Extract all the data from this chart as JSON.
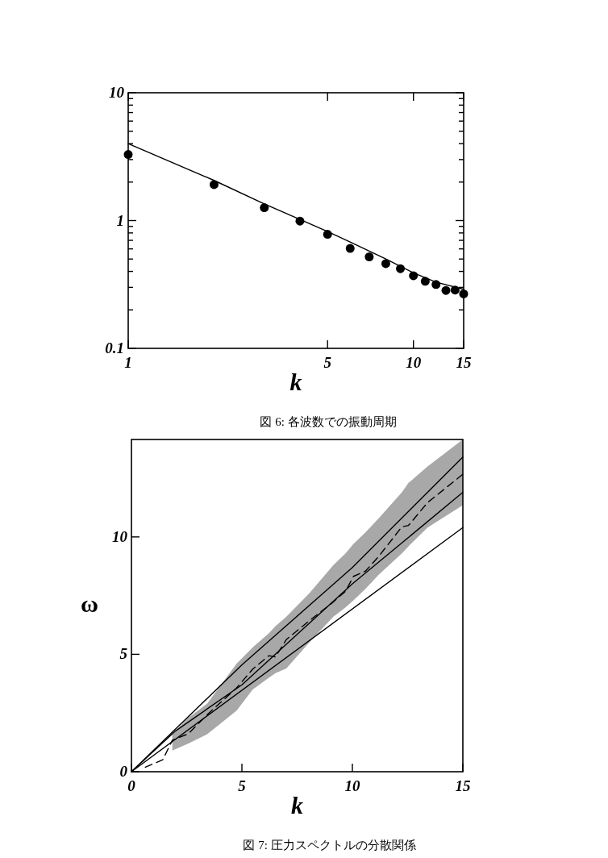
{
  "chart_data": [
    {
      "type": "scatter",
      "log": "xy",
      "marker": "circle",
      "xlabel": "k",
      "xlim": [
        1,
        15
      ],
      "ylim": [
        0.1,
        10
      ],
      "xticks": [
        1,
        5,
        10,
        15
      ],
      "yticks": [
        0.1,
        {
          "value": 0.2,
          "label": null
        },
        {
          "value": 0.3,
          "label": null
        },
        {
          "value": 0.4,
          "label": null
        },
        {
          "value": 0.5,
          "label": null
        },
        {
          "value": 0.6,
          "label": null
        },
        {
          "value": 0.7,
          "label": null
        },
        {
          "value": 0.8,
          "label": null
        },
        {
          "value": 0.9,
          "label": null
        },
        1,
        {
          "value": 2,
          "label": null
        },
        {
          "value": 3,
          "label": null
        },
        {
          "value": 4,
          "label": null
        },
        {
          "value": 5,
          "label": null
        },
        {
          "value": 6,
          "label": null
        },
        {
          "value": 7,
          "label": null
        },
        {
          "value": 8,
          "label": null
        },
        {
          "value": 9,
          "label": null
        },
        10
      ],
      "annotations": [
        "図 6: 各波数での振動周期"
      ],
      "series": [
        {
          "color": "#000000",
          "x": [
            1,
            2,
            3,
            4,
            5,
            6,
            7,
            8,
            9,
            10,
            11,
            12,
            13,
            14,
            15
          ],
          "values": [
            3.29,
            1.91,
            1.26,
            0.99,
            0.78,
            0.605,
            0.52,
            0.46,
            0.42,
            0.37,
            0.335,
            0.316,
            0.284,
            0.286,
            0.267
          ]
        },
        {
          "type": "line",
          "marker": "none",
          "color": "#000000",
          "x": [
            1,
            2,
            3,
            4,
            5,
            6,
            8,
            10,
            12,
            15
          ],
          "values": [
            4.0,
            2.06,
            1.35,
            1.02,
            0.82,
            0.68,
            0.5,
            0.39,
            0.33,
            0.29
          ]
        }
      ]
    },
    {
      "type": "line",
      "xlabel": "k",
      "ylabel": "ω",
      "xlim": [
        0,
        15
      ],
      "ylim": [
        0,
        14.15
      ],
      "xticks": [
        0,
        5,
        10,
        15
      ],
      "yticks": [
        0,
        5,
        10
      ],
      "annotations": [
        "図 7: 圧力スペクトルの分散関係"
      ],
      "series": [
        {
          "color": "#000000",
          "line_style": "solid",
          "x": [
            0,
            5,
            10,
            15
          ],
          "values": [
            0,
            4.55,
            8.7,
            13.4
          ]
        },
        {
          "color": "#000000",
          "line_style": "solid",
          "x": [
            0,
            2,
            5,
            10,
            15
          ],
          "values": [
            0,
            1.74,
            3.7,
            8.0,
            11.9
          ]
        },
        {
          "color": "#000000",
          "line_style": "solid",
          "x": [
            0,
            15
          ],
          "values": [
            0,
            10.4
          ]
        },
        {
          "color": "#000000",
          "line_style": "dashed",
          "x": [
            0.63,
            1.42,
            1.85,
            2.58,
            3.43,
            4.76,
            5.49,
            6.22,
            6.52,
            7.01,
            8.05,
            9.14,
            9.69,
            10.05,
            10.6,
            11.2,
            12.24,
            12.54,
            13.4,
            15
          ],
          "values": [
            0.19,
            0.51,
            1.34,
            1.62,
            2.43,
            3.57,
            4.37,
            4.94,
            4.89,
            5.63,
            6.43,
            7.23,
            7.69,
            8.32,
            8.55,
            9.18,
            10.43,
            10.49,
            11.46,
            12.67
          ],
          "lower": [
            null,
            null,
            0.9,
            1.2,
            1.6,
            2.6,
            3.5,
            4.0,
            4.2,
            4.4,
            5.5,
            6.6,
            7.0,
            7.3,
            7.8,
            8.4,
            9.3,
            9.6,
            10.4,
            11.35
          ],
          "upper": [
            null,
            null,
            1.6,
            2.3,
            2.9,
            4.6,
            5.3,
            5.9,
            6.2,
            6.6,
            7.6,
            8.8,
            9.3,
            9.7,
            10.2,
            10.8,
            11.9,
            12.3,
            13.0,
            14.15
          ]
        }
      ]
    }
  ]
}
